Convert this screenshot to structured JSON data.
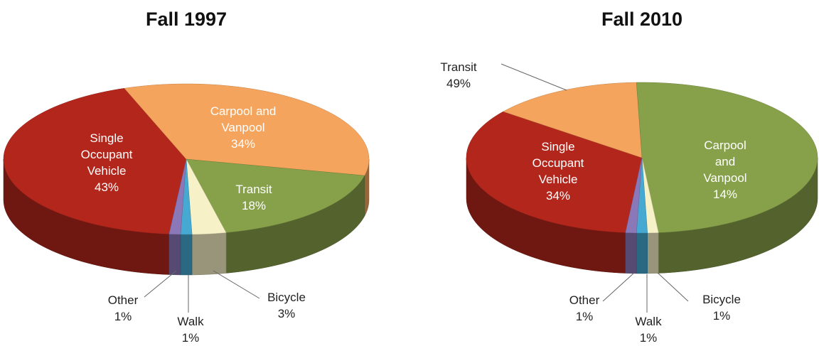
{
  "chart_data": [
    {
      "type": "pie3d",
      "title": "Fall 1997",
      "categories": [
        "Single Occupant Vehicle",
        "Carpool and Vanpool",
        "Transit",
        "Bicycle",
        "Walk",
        "Other"
      ],
      "values": [
        43,
        34,
        18,
        3,
        1,
        1
      ],
      "value_labels": [
        "43%",
        "34%",
        "18%",
        "3%",
        "1%",
        "1%"
      ],
      "colors": [
        "#b3261c",
        "#f4a45c",
        "#87a04a",
        "#f6f1c6",
        "#45a9d2",
        "#8a78b8"
      ]
    },
    {
      "type": "pie3d",
      "title": "Fall 2010",
      "categories": [
        "Single Occupant Vehicle",
        "Carpool and Vanpool",
        "Transit",
        "Bicycle",
        "Walk",
        "Other"
      ],
      "values": [
        34,
        14,
        49,
        1,
        1,
        1
      ],
      "value_labels": [
        "34%",
        "14%",
        "49%",
        "1%",
        "1%",
        "1%"
      ],
      "colors": [
        "#b3261c",
        "#f4a45c",
        "#87a04a",
        "#f6f1c6",
        "#45a9d2",
        "#8a78b8"
      ]
    }
  ]
}
